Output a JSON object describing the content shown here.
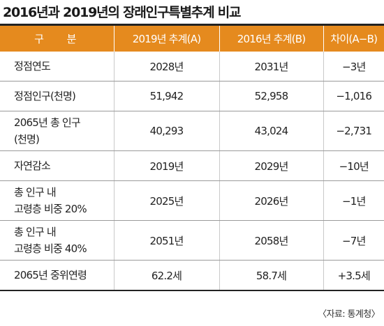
{
  "title": "2016년과 2019년의 장래인구특별추계 비교",
  "table": {
    "headers": [
      "구 분",
      "2019년 추계(A)",
      "2016년 추계(B)",
      "차이(A−B)"
    ],
    "rows": [
      {
        "label": "정점연도",
        "a": "2028년",
        "b": "2031년",
        "diff": "−3년"
      },
      {
        "label": "정점인구(천명)",
        "a": "51,942",
        "b": "52,958",
        "diff": "−1,016"
      },
      {
        "label_lines": [
          "2065년 총 인구",
          "(천명)"
        ],
        "a": "40,293",
        "b": "43,024",
        "diff": "−2,731"
      },
      {
        "label": "자연감소",
        "a": "2019년",
        "b": "2029년",
        "diff": "−10년"
      },
      {
        "label_lines": [
          "총 인구 내",
          "고령층 비중 20%"
        ],
        "a": "2025년",
        "b": "2026년",
        "diff": "−1년"
      },
      {
        "label_lines": [
          "총 인구 내",
          "고령층 비중 40%"
        ],
        "a": "2051년",
        "b": "2058년",
        "diff": "−7년"
      },
      {
        "label": "2065년 중위연령",
        "a": "62.2세",
        "b": "58.7세",
        "diff": "+3.5세"
      }
    ]
  },
  "source": "〈자료: 통계청〉",
  "colors": {
    "header_bg": "#e58a1e",
    "header_text": "#ffffff",
    "text": "#222222"
  }
}
